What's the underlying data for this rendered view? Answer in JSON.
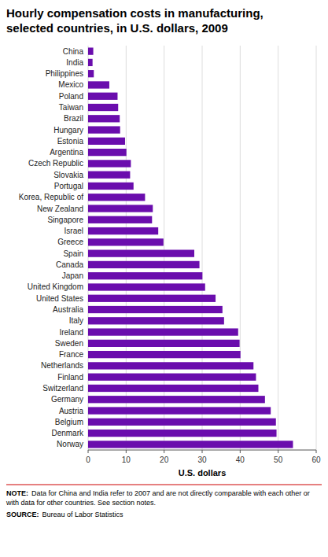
{
  "chart_data": {
    "type": "bar",
    "orientation": "horizontal",
    "title": "Hourly compensation costs in manufacturing,",
    "subtitle": "selected countries, in U.S. dollars, 2009",
    "categories": [
      "China",
      "India",
      "Philippines",
      "Mexico",
      "Poland",
      "Taiwan",
      "Brazil",
      "Hungary",
      "Estonia",
      "Argentina",
      "Czech Republic",
      "Slovakia",
      "Portugal",
      "Korea, Republic of",
      "New Zealand",
      "Singapore",
      "Israel",
      "Greece",
      "Spain",
      "Canada",
      "Japan",
      "United Kingdom",
      "United States",
      "Australia",
      "Italy",
      "Ireland",
      "Sweden",
      "France",
      "Netherlands",
      "Finland",
      "Switzerland",
      "Germany",
      "Austria",
      "Belgium",
      "Denmark",
      "Norway"
    ],
    "values": [
      1.36,
      1.17,
      1.5,
      5.58,
      7.75,
      7.91,
      8.32,
      8.42,
      9.72,
      10.08,
      11.25,
      11.05,
      11.95,
      14.98,
      17.02,
      16.82,
      18.45,
      19.82,
      27.93,
      29.29,
      30.07,
      30.78,
      33.53,
      35.34,
      35.76,
      39.47,
      39.85,
      40.08,
      43.5,
      44.16,
      44.79,
      46.52,
      48.04,
      49.4,
      49.56,
      53.89
    ],
    "color": "#6a0dad",
    "xlabel": "U.S. dollars",
    "xlim": [
      0,
      60
    ],
    "xticks": [
      0,
      10,
      20,
      30,
      40,
      50,
      60
    ],
    "grid": true,
    "annotations": [
      "NOTE:",
      "Data for China and India refer to 2007 and are not directly comparable with each other or with data for other countries. See section notes.",
      "SOURCE:",
      "Bureau of Labor Statistics"
    ]
  }
}
